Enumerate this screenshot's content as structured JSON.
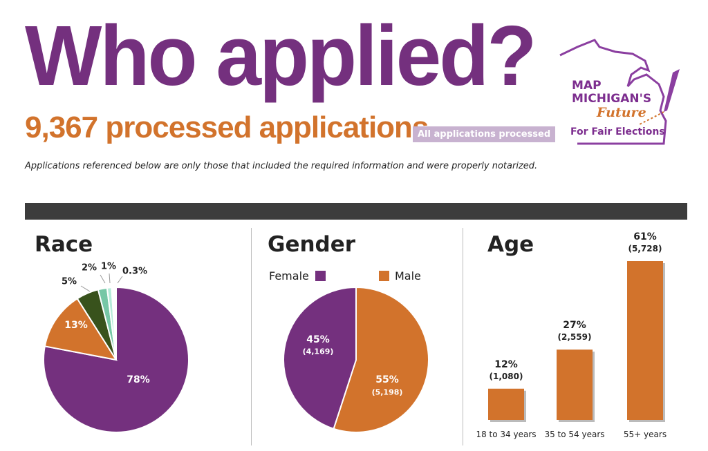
{
  "header": {
    "title": "Who applied?",
    "count": "9,367",
    "subtitle": "processed applications",
    "badge": "All applications processed",
    "note": "Applications referenced below are only those that included the required information and were properly notarized."
  },
  "logo": {
    "line1": "MAP",
    "line2": "MICHIGAN'S",
    "line3": "Future",
    "line4": "For Fair Elections"
  },
  "chart_data": [
    {
      "type": "pie",
      "title": "Race",
      "values": [
        78,
        13,
        5,
        2,
        1,
        0.3
      ],
      "labels": [
        "78%",
        "13%",
        "5%",
        "2%",
        "1%",
        "0.3%"
      ],
      "colors": [
        "#74307e",
        "#d2732c",
        "#38521c",
        "#76c7a6",
        "#b5ecd9",
        "#d9f5ea"
      ]
    },
    {
      "type": "pie",
      "title": "Gender",
      "legend": [
        "Female",
        "Male"
      ],
      "values": [
        45,
        55
      ],
      "labels": [
        "45%",
        "55%"
      ],
      "counts": [
        "(4,169)",
        "(5,198)"
      ],
      "colors": [
        "#74307e",
        "#d2732c"
      ]
    },
    {
      "type": "bar",
      "title": "Age",
      "categories": [
        "18 to 34 years",
        "35 to 54 years",
        "55+ years"
      ],
      "values": [
        12,
        27,
        61
      ],
      "labels": [
        "12%",
        "27%",
        "61%"
      ],
      "counts": [
        "(1,080)",
        "(2,559)",
        "(5,728)"
      ],
      "color": "#d2732c"
    }
  ]
}
